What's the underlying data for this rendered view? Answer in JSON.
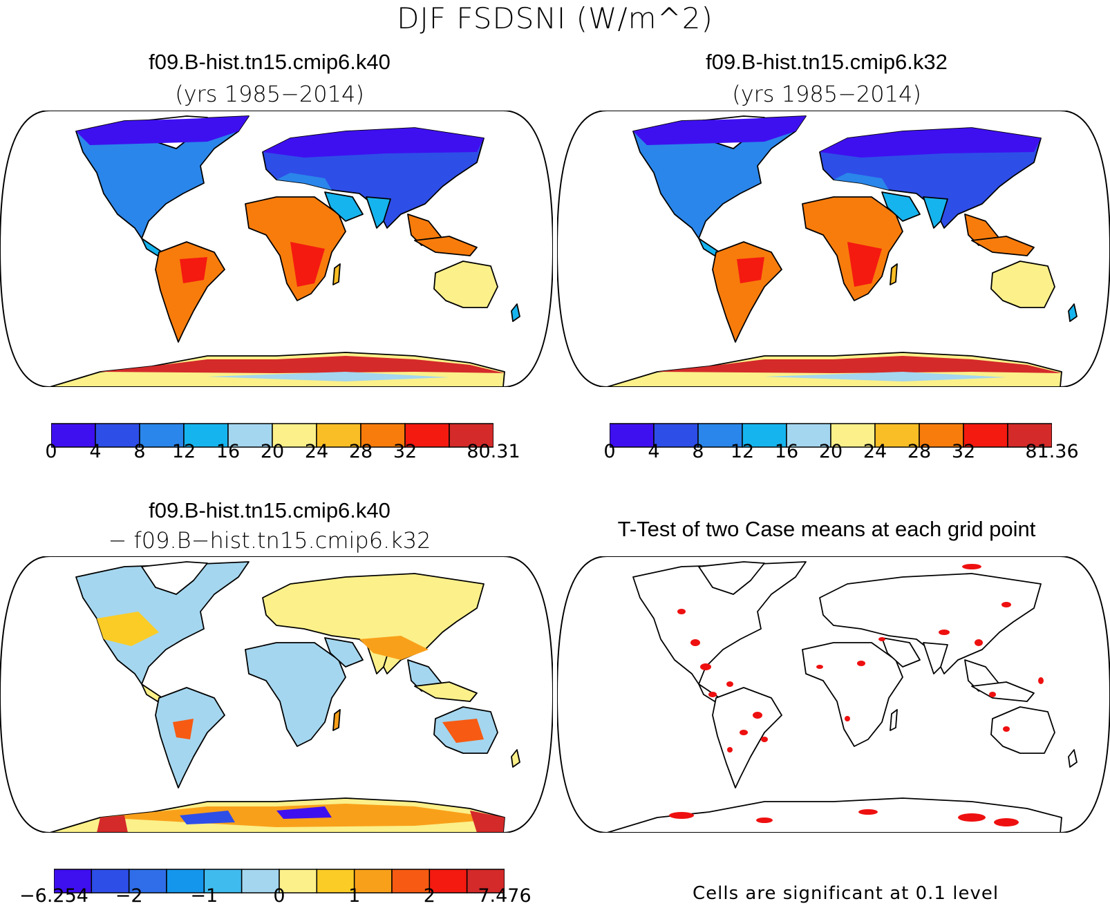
{
  "title": "DJF FSDSNI (W/m^2)",
  "panels": {
    "top_left": {
      "title": "f09.B-hist.tn15.cmip6.k40",
      "subtitle": "(yrs 1985−2014)"
    },
    "top_right": {
      "title": "f09.B-hist.tn15.cmip6.k32",
      "subtitle": "(yrs 1985−2014)"
    },
    "bottom_left": {
      "title": "f09.B-hist.tn15.cmip6.k40",
      "subtitle": "− f09.B−hist.tn15.cmip6.k32"
    },
    "bottom_right": {
      "title": "T-Test of two Case means at each grid point",
      "note": "Cells are significant at 0.1 level"
    }
  },
  "colorbars": {
    "mean_k40": {
      "colors": [
        "#3e10f0",
        "#2e4ee8",
        "#2a86ea",
        "#16b4ee",
        "#a4d6ef",
        "#fbf08a",
        "#f9be26",
        "#f87c0c",
        "#f41a10",
        "#d42a2a"
      ],
      "labels": [
        "0",
        "4",
        "8",
        "12",
        "16",
        "20",
        "24",
        "28",
        "32",
        "80.31"
      ],
      "label_slots": [
        0,
        1,
        2,
        3,
        4,
        5,
        6,
        7,
        8,
        10
      ]
    },
    "mean_k32": {
      "colors": [
        "#3e10f0",
        "#2e4ee8",
        "#2a86ea",
        "#16b4ee",
        "#a4d6ef",
        "#fbf08a",
        "#f9be26",
        "#f87c0c",
        "#f41a10",
        "#d42a2a"
      ],
      "labels": [
        "0",
        "4",
        "8",
        "12",
        "16",
        "20",
        "24",
        "28",
        "32",
        "81.36"
      ],
      "label_slots": [
        0,
        1,
        2,
        3,
        4,
        5,
        6,
        7,
        8,
        10
      ]
    },
    "difference": {
      "colors": [
        "#3e10f0",
        "#2e4ee8",
        "#2f6ee8",
        "#1496ec",
        "#40bbee",
        "#a4d6ef",
        "#fbf08a",
        "#fbcc26",
        "#f9a01a",
        "#f75a12",
        "#f41a10",
        "#d42a2a"
      ],
      "labels": [
        "−6.254",
        "−2",
        "−1",
        "0",
        "1",
        "2",
        "7.476"
      ],
      "label_slots": [
        0,
        2,
        4,
        6,
        8,
        10,
        12
      ]
    }
  },
  "map_colors": {
    "ocean": "#ffffff",
    "coast": "#000000",
    "significant": "#ee1010"
  }
}
